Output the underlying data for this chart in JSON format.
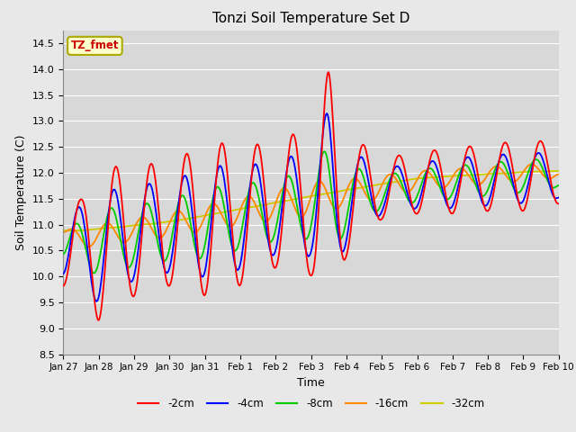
{
  "title": "Tonzi Soil Temperature Set D",
  "xlabel": "Time",
  "ylabel": "Soil Temperature (C)",
  "annotation": "TZ_fmet",
  "ylim": [
    8.5,
    14.75
  ],
  "series_colors": [
    "#ff0000",
    "#0000ff",
    "#00cc00",
    "#ff8800",
    "#cccc00"
  ],
  "series_labels": [
    "-2cm",
    "-4cm",
    "-8cm",
    "-16cm",
    "-32cm"
  ],
  "background_color": "#d8d8d8",
  "grid_color": "#ffffff",
  "tick_dates": [
    "Jan 27",
    "Jan 28",
    "Jan 29",
    "Jan 30",
    "Jan 31",
    "Feb 1",
    "Feb 2",
    "Feb 3",
    "Feb 4",
    "Feb 5",
    "Feb 6",
    "Feb 7",
    "Feb 8",
    "Feb 9",
    "Feb 10"
  ],
  "days": 14,
  "n_points": 672
}
